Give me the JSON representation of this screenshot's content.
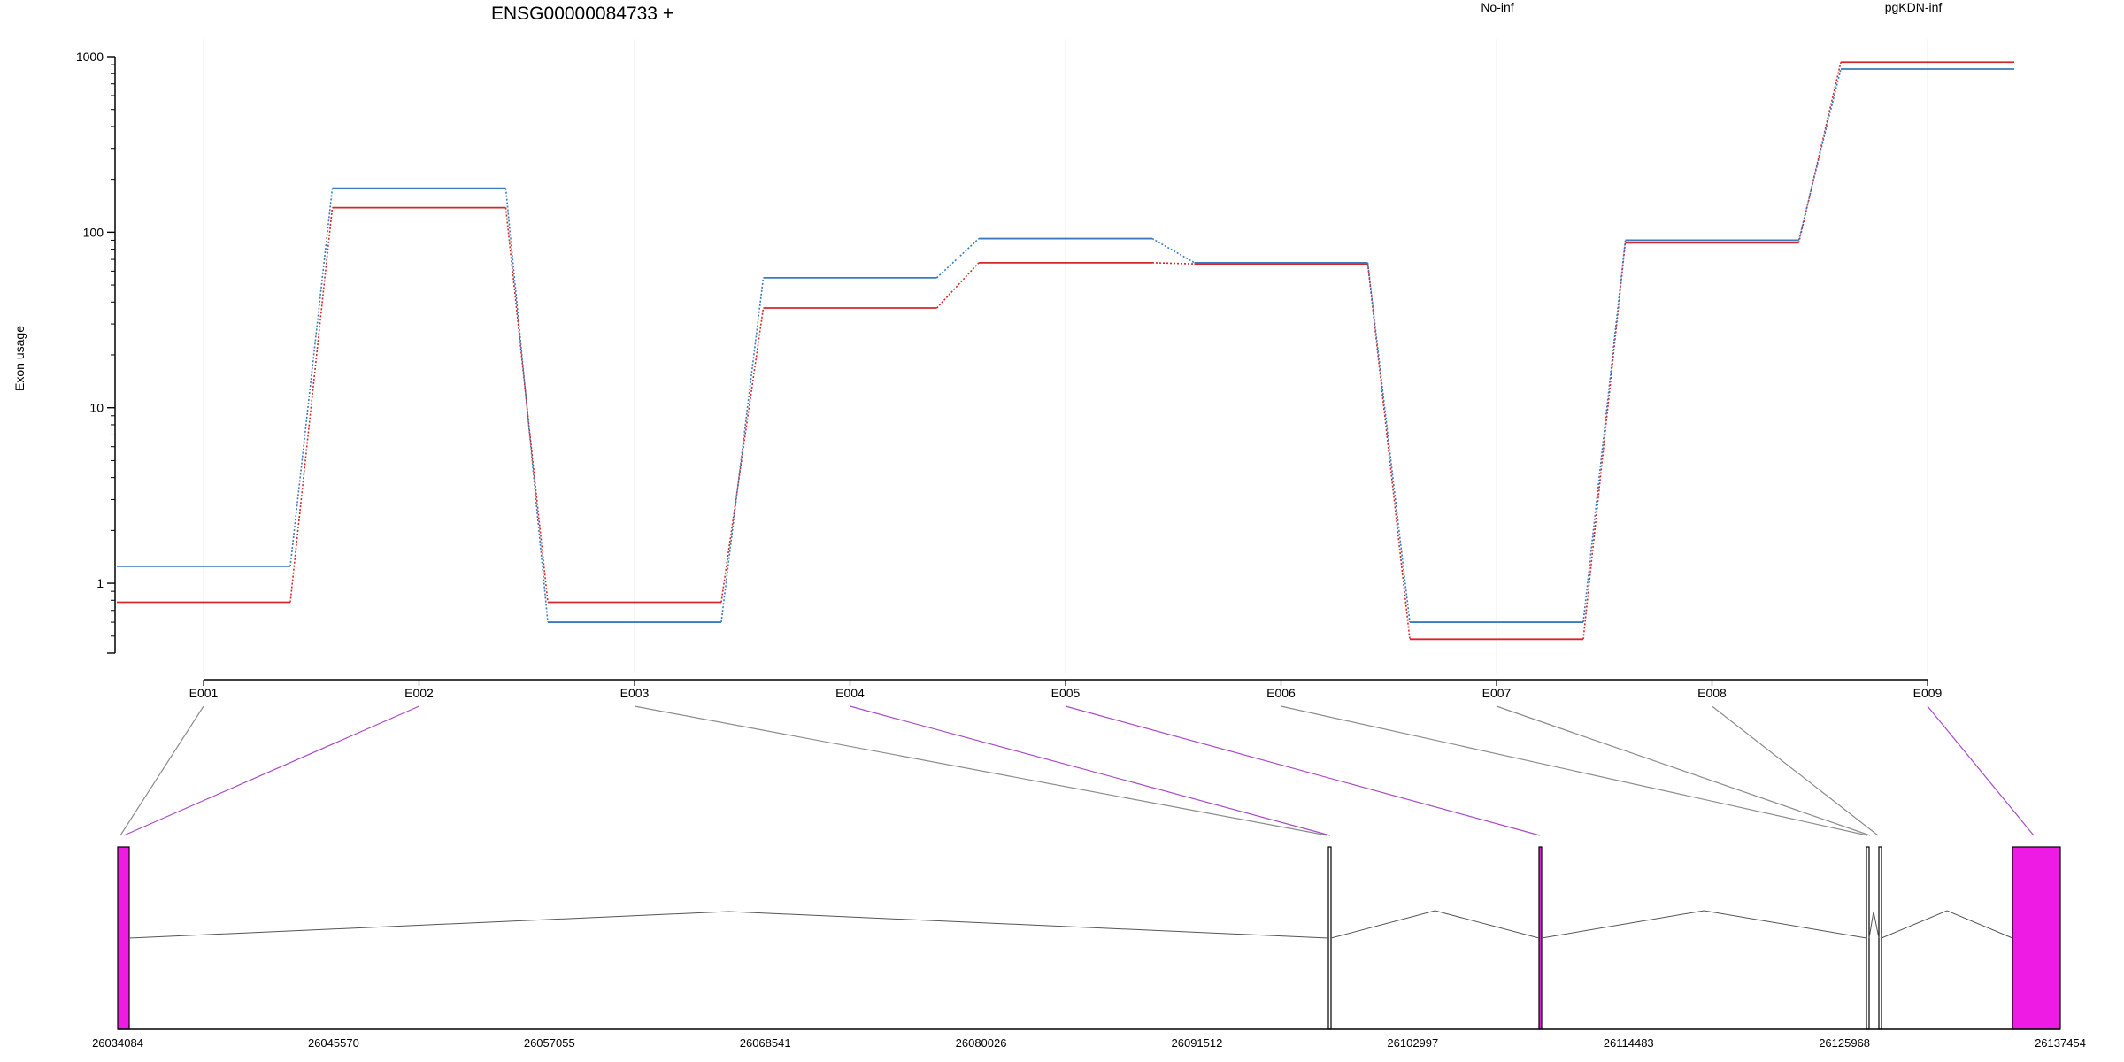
{
  "chart_data": {
    "type": "line",
    "title": "ENSG00000084733 +",
    "ylabel": "Exon usage",
    "xlabel": "",
    "y_scale": "log",
    "ylim": [
      0.4,
      1000
    ],
    "y_ticks": [
      1,
      10,
      100,
      1000
    ],
    "y_tick_labels": [
      "1",
      "10",
      "100",
      "1000"
    ],
    "categories": [
      "E001",
      "E002",
      "E003",
      "E004",
      "E005",
      "E006",
      "E007",
      "E008",
      "E009"
    ],
    "grid": true,
    "legend_position": "top",
    "series": [
      {
        "name": "No-inf",
        "color": "#d62728",
        "values": [
          0.78,
          138,
          0.78,
          37,
          67,
          66,
          0.48,
          87,
          930
        ]
      },
      {
        "name": "pgKDN-inf",
        "color": "#3a7bbf",
        "values": [
          1.25,
          178,
          0.6,
          55,
          92,
          67,
          0.6,
          90,
          850
        ]
      }
    ],
    "gene_model": {
      "coordinate_labels": [
        "26034084",
        "26045570",
        "26057055",
        "26068541",
        "26080026",
        "26091512",
        "26102997",
        "26114483",
        "26125968",
        "26137454"
      ],
      "exon_colors": {
        "significant": "#ee1be4",
        "normal": "#ffffff"
      },
      "connector_colors": {
        "significant": "#a94bc7",
        "normal": "#8c8c8c"
      }
    }
  }
}
